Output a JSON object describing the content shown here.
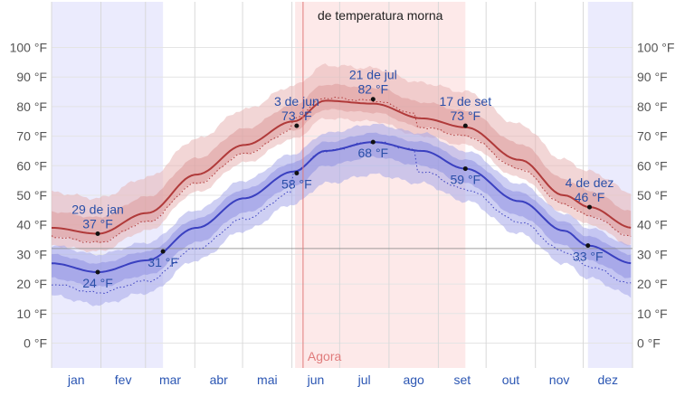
{
  "chart_data": {
    "type": "area",
    "title": "",
    "xlabel": "",
    "ylabel": "",
    "ylim": [
      -8,
      112
    ],
    "y_ticks": [
      0,
      10,
      20,
      30,
      40,
      50,
      60,
      70,
      80,
      90,
      100
    ],
    "y_tick_labels": [
      "0 °F",
      "10 °F",
      "20 °F",
      "30 °F",
      "40 °F",
      "50 °F",
      "60 °F",
      "70 °F",
      "80 °F",
      "90 °F",
      "100 °F"
    ],
    "months": [
      "jan",
      "fev",
      "mar",
      "abr",
      "mai",
      "jun",
      "jul",
      "ago",
      "set",
      "out",
      "nov",
      "dez"
    ],
    "freezing_line": 32,
    "now_label": "Agora",
    "now_day": 158,
    "warm_season": {
      "label": "de temperatura morna",
      "start_day": 153,
      "end_day": 260
    },
    "cold_season_start_day": 337,
    "cold_season_end_day": 70,
    "colors": {
      "high": "#b03a3a",
      "low": "#3a40c0",
      "warm_season_bg": "#fde9e9",
      "cold_season_bg": "#ebebfd",
      "now_line": "#e07b7b"
    },
    "series": [
      {
        "name": "",
        "role": "high",
        "days": [
          0,
          29,
          60,
          91,
          121,
          152,
          172,
          202,
          233,
          260,
          294,
          322,
          338,
          365
        ],
        "values": [
          39,
          37,
          44,
          57,
          67,
          75,
          82,
          81,
          76,
          73,
          62,
          50,
          46,
          39
        ]
      },
      {
        "name": "",
        "role": "low",
        "days": [
          0,
          29,
          60,
          91,
          121,
          152,
          172,
          202,
          233,
          260,
          294,
          322,
          337,
          365
        ],
        "values": [
          27,
          24,
          28,
          39,
          49,
          58,
          65,
          68,
          65,
          59,
          48,
          38,
          33,
          27
        ]
      }
    ],
    "annotations": [
      {
        "date": "29 de jan",
        "value": "37 °F",
        "day": 29,
        "temp": 37
      },
      {
        "date": "",
        "value": "24 °F",
        "day": 29,
        "temp": 24
      },
      {
        "date": "",
        "value": "31 °F",
        "day": 70,
        "temp": 31
      },
      {
        "date": "3 de jun",
        "value": "73 °F",
        "day": 154,
        "temp": 73.5
      },
      {
        "date": "",
        "value": "58 °F",
        "day": 154,
        "temp": 57.5
      },
      {
        "date": "21 de jul",
        "value": "82 °F",
        "day": 202,
        "temp": 82.5
      },
      {
        "date": "",
        "value": "68 °F",
        "day": 202,
        "temp": 68
      },
      {
        "date": "17 de set",
        "value": "73 °F",
        "day": 260,
        "temp": 73.5
      },
      {
        "date": "",
        "value": "59 °F",
        "day": 260,
        "temp": 59
      },
      {
        "date": "4 de dez",
        "value": "46 °F",
        "day": 338,
        "temp": 46
      },
      {
        "date": "",
        "value": "33 °F",
        "day": 337,
        "temp": 33
      }
    ]
  }
}
